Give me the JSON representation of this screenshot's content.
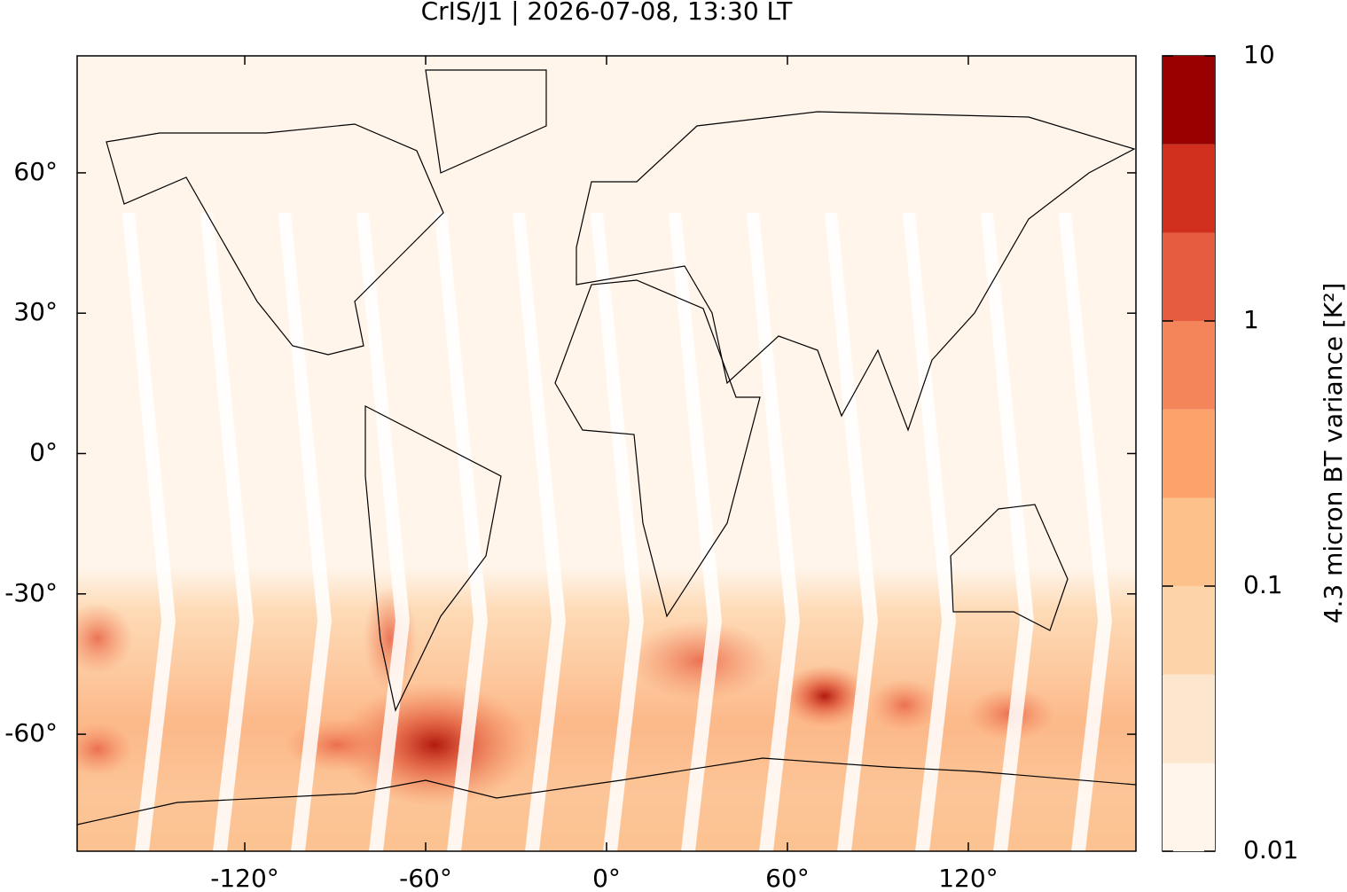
{
  "chart_data": {
    "type": "map",
    "title": "CrIS/J1 | 2026-07-08, 13:30 LT",
    "xlim": [
      -175.6,
      175.6
    ],
    "ylim": [
      -85,
      85
    ],
    "xticks": [
      {
        "value": -120,
        "label": "-120°"
      },
      {
        "value": -60,
        "label": "-60°"
      },
      {
        "value": 0,
        "label": "0°"
      },
      {
        "value": 60,
        "label": "60°"
      },
      {
        "value": 120,
        "label": "120°"
      }
    ],
    "yticks": [
      {
        "value": 60,
        "label": "60°"
      },
      {
        "value": 30,
        "label": "30°"
      },
      {
        "value": 0,
        "label": "0°"
      },
      {
        "value": -30,
        "label": "-30°"
      },
      {
        "value": -60,
        "label": "-60°"
      }
    ],
    "colorbar": {
      "label": "4.3 micron BT variance [K²]",
      "log_scale": true,
      "lim": [
        0.01,
        10
      ],
      "ticks": [
        0.01,
        0.1,
        1,
        10
      ],
      "levels": [
        0.01,
        0.0215,
        0.0464,
        0.1,
        0.215,
        0.464,
        1,
        2.15,
        4.64,
        10
      ],
      "colors": [
        "#fff5eb",
        "#fde6ce",
        "#fdd4a9",
        "#fdc28c",
        "#fca36c",
        "#f4845a",
        "#e65c40",
        "#d1301f",
        "#990000"
      ]
    }
  }
}
